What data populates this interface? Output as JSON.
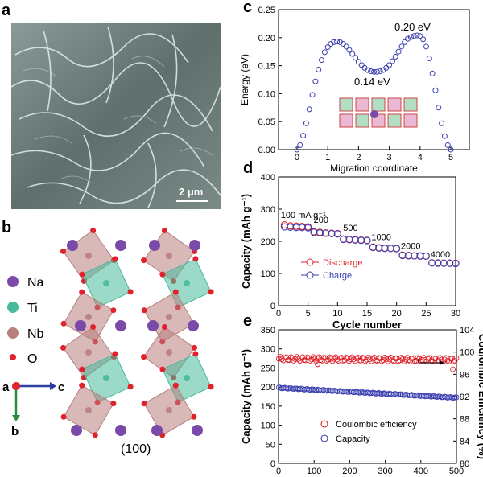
{
  "panels": {
    "a": {
      "letter": "a",
      "scale_bar": "2 μm"
    },
    "b": {
      "letter": "b",
      "legend": [
        {
          "label": "Na",
          "color": "#7b4aa8"
        },
        {
          "label": "Ti",
          "color": "#48b99a"
        },
        {
          "label": "Nb",
          "color": "#b87f7e"
        },
        {
          "label": "O",
          "color": "#e0222b"
        }
      ],
      "axes": {
        "origin": "a",
        "horizontal": "c",
        "vertical": "b"
      },
      "plane": "(100)"
    },
    "c": {
      "letter": "c"
    },
    "d": {
      "letter": "d"
    },
    "e": {
      "letter": "e"
    }
  },
  "chart_data": [
    {
      "id": "c",
      "type": "scatter",
      "xlabel": "Migration coordinate",
      "ylabel": "Energy (eV)",
      "xlim": [
        -0.6,
        5.6
      ],
      "ylim": [
        0,
        0.25
      ],
      "xticks": [
        0,
        1,
        2,
        3,
        4,
        5
      ],
      "yticks": [
        0.0,
        0.05,
        0.1,
        0.15,
        0.2,
        0.25
      ],
      "ytick_labels": [
        "0.00",
        "0.05",
        "0.10",
        "0.15",
        "0.20",
        "0.25"
      ],
      "annotations": [
        "0.20 eV",
        "0.14 eV"
      ],
      "series": [
        {
          "color": "#3b3fae",
          "x": [
            0,
            0.1,
            0.2,
            0.3,
            0.4,
            0.5,
            0.6,
            0.7,
            0.8,
            0.9,
            1.0,
            1.1,
            1.2,
            1.3,
            1.4,
            1.5,
            1.6,
            1.7,
            1.8,
            1.9,
            2.0,
            2.1,
            2.2,
            2.3,
            2.4,
            2.5,
            2.6,
            2.7,
            2.8,
            2.9,
            3.0,
            3.1,
            3.2,
            3.3,
            3.4,
            3.5,
            3.6,
            3.7,
            3.8,
            3.9,
            4.0,
            4.1,
            4.2,
            4.3,
            4.4,
            4.5,
            4.6,
            4.7,
            4.8,
            4.9,
            5.0
          ],
          "y": [
            0,
            0.008,
            0.025,
            0.047,
            0.072,
            0.098,
            0.122,
            0.143,
            0.16,
            0.174,
            0.183,
            0.189,
            0.192,
            0.193,
            0.192,
            0.189,
            0.184,
            0.178,
            0.171,
            0.164,
            0.157,
            0.151,
            0.146,
            0.142,
            0.14,
            0.139,
            0.139,
            0.14,
            0.142,
            0.146,
            0.151,
            0.158,
            0.166,
            0.175,
            0.184,
            0.192,
            0.198,
            0.201,
            0.203,
            0.204,
            0.203,
            0.197,
            0.184,
            0.163,
            0.136,
            0.106,
            0.075,
            0.047,
            0.024,
            0.008,
            0
          ]
        }
      ]
    },
    {
      "id": "d",
      "type": "scatter",
      "xlabel": "Cycle number",
      "ylabel": "Capacity (mAh g⁻¹)",
      "xlim": [
        0,
        30
      ],
      "ylim": [
        0,
        400
      ],
      "xticks": [
        0,
        5,
        10,
        15,
        20,
        25,
        30
      ],
      "yticks": [
        0,
        100,
        200,
        300,
        400
      ],
      "rate_labels": [
        {
          "text": "100 mA g⁻¹",
          "x": 4.2,
          "y": 272
        },
        {
          "text": "200",
          "x": 7.2,
          "y": 258
        },
        {
          "text": "500",
          "x": 12.2,
          "y": 232
        },
        {
          "text": "1000",
          "x": 17.4,
          "y": 204
        },
        {
          "text": "2000",
          "x": 22.4,
          "y": 176
        },
        {
          "text": "4000",
          "x": 27.4,
          "y": 150
        }
      ],
      "legend_position": "middle-left",
      "series": [
        {
          "name": "Discharge",
          "color": "#e0222b",
          "x": [
            1,
            2,
            3,
            4,
            5,
            6,
            7,
            8,
            9,
            10,
            11,
            12,
            13,
            14,
            15,
            16,
            17,
            18,
            19,
            20,
            21,
            22,
            23,
            24,
            25,
            26,
            27,
            28,
            29,
            30
          ],
          "y": [
            251,
            248,
            247,
            246,
            245,
            230,
            228,
            226,
            225,
            224,
            207,
            206,
            205,
            204,
            203,
            182,
            180,
            179,
            178,
            178,
            157,
            156,
            155,
            155,
            154,
            133,
            133,
            132,
            132,
            132
          ]
        },
        {
          "name": "Charge",
          "color": "#3b3fae",
          "x": [
            1,
            2,
            3,
            4,
            5,
            6,
            7,
            8,
            9,
            10,
            11,
            12,
            13,
            14,
            15,
            16,
            17,
            18,
            19,
            20,
            21,
            22,
            23,
            24,
            25,
            26,
            27,
            28,
            29,
            30
          ],
          "y": [
            245,
            244,
            243,
            243,
            242,
            228,
            226,
            225,
            224,
            223,
            206,
            205,
            204,
            203,
            202,
            181,
            179,
            178,
            178,
            177,
            156,
            155,
            155,
            154,
            154,
            133,
            132,
            132,
            132,
            131
          ]
        }
      ]
    },
    {
      "id": "e",
      "type": "scatter",
      "xlabel": "Cycle number",
      "ylabel": "Capacity (mAh g⁻¹)",
      "y2label": "Coulombic Efficiency (%)",
      "xlim": [
        0,
        500
      ],
      "ylim": [
        0,
        350
      ],
      "y2lim": [
        80,
        104
      ],
      "xticks": [
        0,
        100,
        200,
        300,
        400,
        500
      ],
      "yticks": [
        0,
        50,
        100,
        150,
        200,
        250,
        300,
        350
      ],
      "y2ticks": [
        80,
        84,
        88,
        92,
        96,
        100,
        104
      ],
      "legend_position": "lower-center",
      "series": [
        {
          "name": "Coulombic efficiency",
          "color": "#e0222b",
          "axis": "right",
          "start": 1,
          "end": 500,
          "count": 120,
          "y_start": 98.8,
          "y_end": 98.6,
          "noise": 0.35,
          "outliers": [
            {
              "x": 110,
              "y": 97.8
            },
            {
              "x": 490,
              "y": 96.9
            }
          ]
        },
        {
          "name": "Capacity",
          "color": "#3b3fae",
          "axis": "left",
          "start": 1,
          "end": 500,
          "count": 120,
          "y_start": 198,
          "y_end": 172,
          "noise": 1.2,
          "outliers": []
        }
      ]
    }
  ]
}
